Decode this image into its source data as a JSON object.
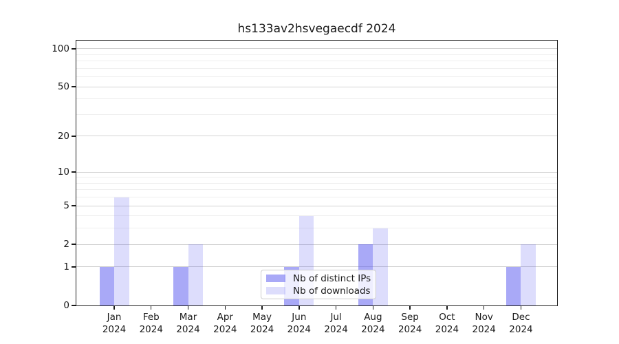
{
  "figure": {
    "title": "hs133av2hsvegaecdf 2024"
  },
  "chart_data": {
    "type": "bar",
    "title": "hs133av2hsvegaecdf 2024",
    "categories": [
      "Jan",
      "Feb",
      "Mar",
      "Apr",
      "May",
      "Jun",
      "Jul",
      "Aug",
      "Sep",
      "Oct",
      "Nov",
      "Dec"
    ],
    "category_year": "2024",
    "series": [
      {
        "name": "Nb of distinct IPs",
        "color": "rgba(84,84,239,0.5)",
        "values": [
          1,
          0,
          1,
          0,
          0,
          1,
          0,
          2,
          0,
          0,
          0,
          1
        ]
      },
      {
        "name": "Nb of downloads",
        "color": "rgba(84,84,239,0.2)",
        "values": [
          6,
          0,
          2,
          0,
          0,
          4,
          0,
          3,
          0,
          0,
          0,
          2
        ]
      }
    ],
    "xlabel": "",
    "ylabel": "",
    "yscale": "log1p",
    "ylim": [
      0,
      116
    ],
    "yticks": [
      0,
      1,
      2,
      5,
      10,
      20,
      50,
      100
    ],
    "yticks_minor": [
      3,
      4,
      6,
      7,
      8,
      9,
      30,
      40,
      60,
      70,
      80,
      90
    ],
    "grid": true,
    "legend": {
      "position": "lower center",
      "labels": [
        "Nb of distinct IPs",
        "Nb of downloads"
      ]
    }
  },
  "colors": {
    "background": "#ffffff",
    "spine": "#1a1a1a",
    "text": "#1a1a1a",
    "grid_major": "#d2d2d2",
    "grid_minor": "#efefef",
    "legend_border": "#cccccc",
    "bar_distinct_ips_solid": "#a9a9f6",
    "bar_downloads_solid": "#dcdcfa"
  }
}
